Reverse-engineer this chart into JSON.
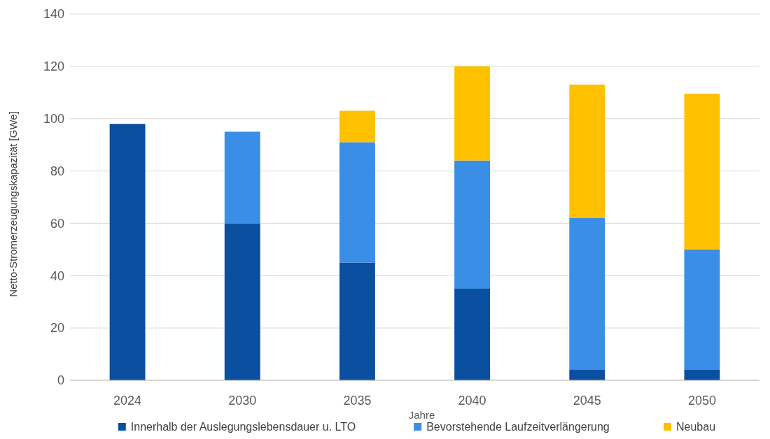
{
  "chart_data": {
    "type": "bar",
    "stacked": true,
    "xlabel": "Jahre",
    "ylabel": "Netto-Stromerzeugungskapazität [GWe]",
    "categories": [
      "2024",
      "2030",
      "2035",
      "2040",
      "2045",
      "2050"
    ],
    "series": [
      {
        "name": "Innerhalb der Auslegungslebensdauer u. LTO",
        "color": "#0a4fa0",
        "values": [
          98,
          60,
          45,
          35,
          4,
          4
        ]
      },
      {
        "name": "Bevorstehende Laufzeitverlängerung",
        "color": "#3a8ee6",
        "values": [
          0,
          35,
          46,
          49,
          58,
          46
        ]
      },
      {
        "name": "Neubau",
        "color": "#ffc000",
        "values": [
          0,
          0,
          12,
          36,
          51,
          59.5
        ]
      }
    ],
    "ylim": [
      0,
      140
    ],
    "yticks": [
      0,
      20,
      40,
      60,
      80,
      100,
      120,
      140
    ],
    "grid": "y",
    "legend": "bottom"
  }
}
